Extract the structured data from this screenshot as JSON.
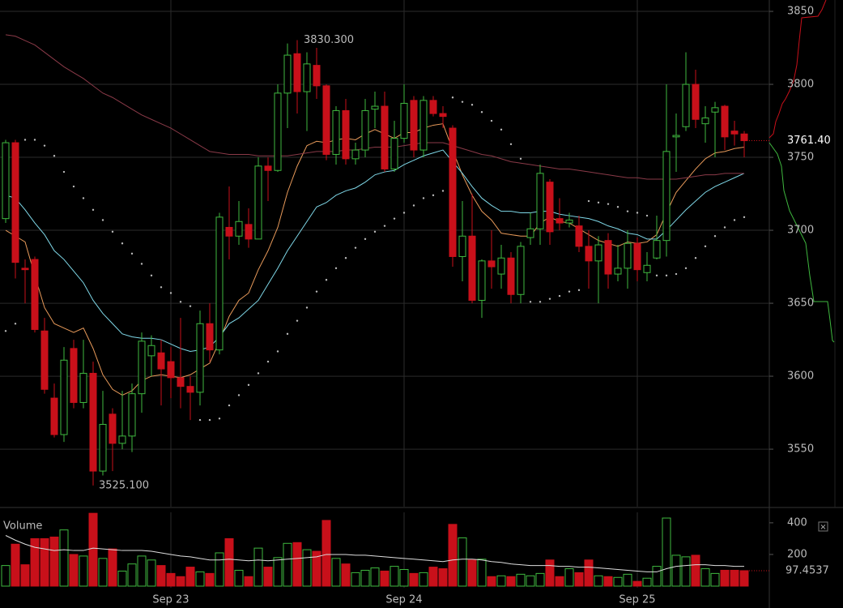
{
  "chart_data": [
    {
      "type": "candlestick",
      "categories": [
        null,
        null,
        null,
        null,
        null,
        null,
        null,
        null,
        null,
        null,
        null,
        null,
        null,
        null,
        null,
        null,
        null,
        "Sep 23",
        null,
        null,
        null,
        null,
        null,
        null,
        null,
        null,
        null,
        null,
        null,
        null,
        null,
        null,
        null,
        null,
        null,
        null,
        null,
        null,
        null,
        null,
        null,
        "Sep 24",
        null,
        null,
        null,
        null,
        null,
        null,
        null,
        null,
        null,
        null,
        null,
        null,
        null,
        null,
        null,
        null,
        null,
        null,
        null,
        null,
        null,
        null,
        null,
        "Sep 25",
        null,
        null,
        null,
        null,
        null,
        null,
        null,
        null,
        null,
        null,
        null
      ],
      "open": [
        3708,
        3760,
        3674,
        3680,
        3631,
        3585,
        3560,
        3619,
        3582,
        3602,
        3535,
        3574,
        3554,
        3559,
        3588,
        3614,
        3616,
        3610,
        3599,
        3593,
        3589,
        3636,
        3618,
        3702,
        3696,
        3704,
        3694,
        3744,
        3741,
        3794,
        3821,
        3795,
        3813,
        3799,
        3752,
        3782,
        3749,
        3755,
        3783,
        3785,
        3742,
        3763,
        3789,
        3755,
        3789,
        3780,
        3770,
        3682,
        3696,
        3652,
        3679,
        3670,
        3681,
        3656,
        3695,
        3701,
        3733,
        3708,
        3705,
        3703,
        3689,
        3679,
        3693,
        3670,
        3674,
        3691,
        3671,
        3681,
        3693,
        3764,
        3771,
        3800,
        3773,
        3781,
        3785,
        3768,
        3766
      ],
      "high": [
        3762,
        3762,
        3680,
        3682,
        3640,
        3595,
        3620,
        3625,
        3625,
        3610,
        3590,
        3578,
        3590,
        3595,
        3630,
        3628,
        3625,
        3620,
        3640,
        3600,
        3645,
        3650,
        3712,
        3730,
        3720,
        3715,
        3750,
        3750,
        3800,
        3828,
        3830.3,
        3822,
        3825,
        3800,
        3785,
        3790,
        3760,
        3790,
        3795,
        3795,
        3775,
        3800,
        3792,
        3792,
        3792,
        3785,
        3772,
        3720,
        3725,
        3680,
        3700,
        3690,
        3685,
        3692,
        3712,
        3745,
        3735,
        3722,
        3712,
        3710,
        3700,
        3696,
        3698,
        3690,
        3700,
        3695,
        3685,
        3710,
        3800,
        3780,
        3822,
        3810,
        3785,
        3788,
        3786,
        3775,
        3768
      ],
      "low": [
        3705,
        3667,
        3650,
        3630,
        3588,
        3558,
        3555,
        3578,
        3578,
        3525.1,
        3532,
        3535,
        3550,
        3548,
        3575,
        3600,
        3580,
        3585,
        3578,
        3570,
        3580,
        3610,
        3615,
        3680,
        3690,
        3688,
        3694,
        3720,
        3740,
        3770,
        3780,
        3768,
        3790,
        3748,
        3745,
        3745,
        3745,
        3750,
        3770,
        3740,
        3740,
        3760,
        3750,
        3750,
        3778,
        3770,
        3675,
        3665,
        3650,
        3640,
        3660,
        3660,
        3650,
        3650,
        3690,
        3690,
        3690,
        3700,
        3702,
        3685,
        3660,
        3650,
        3660,
        3665,
        3660,
        3665,
        3665,
        3680,
        3682,
        3740,
        3768,
        3770,
        3760,
        3750,
        3755,
        3758,
        3750
      ],
      "close": [
        3760,
        3678,
        3673,
        3632,
        3591,
        3560,
        3611,
        3582,
        3602,
        3535,
        3567,
        3554,
        3559,
        3588,
        3624,
        3621,
        3605,
        3599,
        3593,
        3589,
        3636,
        3618,
        3709,
        3696,
        3706,
        3694,
        3744,
        3741,
        3794,
        3820,
        3795,
        3814,
        3799,
        3752,
        3782,
        3749,
        3755,
        3782,
        3785,
        3742,
        3763,
        3787,
        3755,
        3789,
        3780,
        3778,
        3682,
        3696,
        3652,
        3679,
        3675,
        3681,
        3656,
        3689,
        3701,
        3739,
        3699,
        3705,
        3707,
        3689,
        3679,
        3690,
        3670,
        3674,
        3691,
        3673,
        3676,
        3693,
        3754,
        3765,
        3800,
        3776,
        3777,
        3784,
        3764,
        3766,
        3761.4
      ],
      "up_color": "#3fb83f",
      "down_color": "#c8101a",
      "overlays": [
        {
          "color": "#e89a5a",
          "values": [
            3700,
            3696,
            3692,
            3669,
            3647,
            3636,
            3633,
            3630,
            3633,
            3619,
            3601,
            3591,
            3587,
            3590,
            3597,
            3600,
            3601,
            3600,
            3599,
            3601,
            3605,
            3609,
            3624,
            3641,
            3652,
            3657,
            3673,
            3686,
            3702,
            3726,
            3744,
            3758,
            3761,
            3760,
            3762,
            3763,
            3762,
            3766,
            3769,
            3766,
            3763,
            3767,
            3767,
            3770,
            3772,
            3773,
            3755,
            3738,
            3724,
            3713,
            3707,
            3698,
            3697,
            3696,
            3696,
            3705,
            3709,
            3706,
            3705,
            3701,
            3697,
            3693,
            3691,
            3689,
            3692,
            3691,
            3692,
            3697,
            3712,
            3726,
            3734,
            3742,
            3749,
            3753,
            3754,
            3756,
            3757
          ]
        },
        {
          "color": "#7fd8e8",
          "values": [
            3724,
            3722,
            3714,
            3705,
            3697,
            3686,
            3680,
            3672,
            3664,
            3652,
            3643,
            3636,
            3629,
            3627,
            3626,
            3626,
            3625,
            3622,
            3619,
            3617,
            3618,
            3620,
            3627,
            3636,
            3640,
            3646,
            3652,
            3663,
            3674,
            3686,
            3696,
            3706,
            3716,
            3719,
            3724,
            3727,
            3729,
            3733,
            3738,
            3740,
            3741,
            3745,
            3748,
            3751,
            3753,
            3755,
            3747,
            3739,
            3730,
            3722,
            3717,
            3713,
            3713,
            3712,
            3712,
            3713,
            3713,
            3711,
            3710,
            3709,
            3708,
            3706,
            3703,
            3701,
            3698,
            3697,
            3694,
            3694,
            3700,
            3707,
            3714,
            3720,
            3726,
            3730,
            3733,
            3736,
            3739
          ]
        },
        {
          "color": "#8a3a48",
          "values": [
            3834,
            3833,
            3830,
            3827,
            3822,
            3817,
            3812,
            3808,
            3804,
            3799,
            3794,
            3791,
            3787,
            3783,
            3779,
            3776,
            3773,
            3770,
            3766,
            3762,
            3758,
            3754,
            3753,
            3752,
            3752,
            3752,
            3751,
            3751,
            3751,
            3751,
            3752,
            3753,
            3754,
            3754,
            3754,
            3755,
            3755,
            3756,
            3757,
            3757,
            3757,
            3758,
            3759,
            3760,
            3760,
            3760,
            3758,
            3756,
            3754,
            3752,
            3751,
            3749,
            3747,
            3746,
            3745,
            3744,
            3743,
            3742,
            3742,
            3741,
            3740,
            3739,
            3738,
            3737,
            3736,
            3736,
            3735,
            3735,
            3735,
            3735,
            3736,
            3737,
            3738,
            3738,
            3739,
            3739,
            3739
          ]
        }
      ],
      "sar": {
        "color": "#bbbbbb",
        "values": [
          3631,
          3636,
          3762,
          3762,
          3758,
          3751,
          3740,
          3730,
          3722,
          3714,
          3707,
          3699,
          3691,
          3684,
          3677,
          3669,
          3661,
          3657,
          3651,
          3648,
          3570,
          3570,
          3571,
          3580,
          3587,
          3594,
          3602,
          3610,
          3617,
          3629,
          3638,
          3647,
          3658,
          3666,
          3674,
          3681,
          3688,
          3694,
          3699,
          3703,
          3708,
          3712,
          3717,
          3722,
          3724,
          3727,
          3791,
          3788,
          3786,
          3781,
          3775,
          3769,
          3759,
          3749,
          3651,
          3651,
          3653,
          3655,
          3658,
          3659,
          3720,
          3719,
          3718,
          3716,
          3713,
          3712,
          3710,
          3669,
          3669,
          3670,
          3674,
          3681,
          3689,
          3696,
          3702,
          3707,
          3709
        ]
      },
      "high_label": {
        "value": 3830.3,
        "label": "3830.300"
      },
      "low_label": {
        "value": 3525.1,
        "label": "3525.100"
      },
      "last_price": {
        "value": 3761.4,
        "label": "3761.40"
      },
      "ylim": [
        3510.6,
        3857.8
      ],
      "yticks": [
        3550,
        3600,
        3650,
        3700,
        3750,
        3800,
        3850
      ],
      "grid": true
    },
    {
      "type": "bar",
      "title": "Volume",
      "values": [
        130,
        265,
        135,
        300,
        300,
        310,
        355,
        200,
        190,
        460,
        175,
        235,
        95,
        140,
        190,
        165,
        130,
        80,
        60,
        120,
        90,
        80,
        210,
        300,
        100,
        60,
        240,
        120,
        180,
        270,
        275,
        230,
        220,
        415,
        175,
        140,
        85,
        100,
        115,
        95,
        125,
        105,
        80,
        85,
        120,
        110,
        390,
        305,
        165,
        170,
        60,
        65,
        60,
        75,
        65,
        80,
        165,
        60,
        110,
        85,
        165,
        65,
        60,
        55,
        75,
        30,
        50,
        125,
        430,
        195,
        185,
        195,
        110,
        80,
        100,
        100,
        97.4537
      ],
      "ma": {
        "color": "#dddddd",
        "values": [
          320,
          290,
          265,
          245,
          235,
          225,
          230,
          225,
          225,
          240,
          235,
          230,
          225,
          225,
          225,
          220,
          210,
          200,
          190,
          185,
          175,
          165,
          165,
          170,
          165,
          160,
          165,
          160,
          165,
          170,
          175,
          180,
          185,
          200,
          200,
          200,
          195,
          195,
          190,
          185,
          180,
          175,
          170,
          165,
          160,
          155,
          165,
          170,
          170,
          165,
          155,
          150,
          140,
          135,
          130,
          130,
          130,
          125,
          125,
          120,
          120,
          115,
          110,
          105,
          100,
          95,
          90,
          90,
          110,
          125,
          130,
          135,
          135,
          130,
          130,
          125,
          125
        ]
      },
      "last_value": {
        "value": 97.4537,
        "label": "97.4537"
      },
      "ylim": [
        0,
        466
      ],
      "yticks": [
        200,
        400
      ]
    }
  ]
}
